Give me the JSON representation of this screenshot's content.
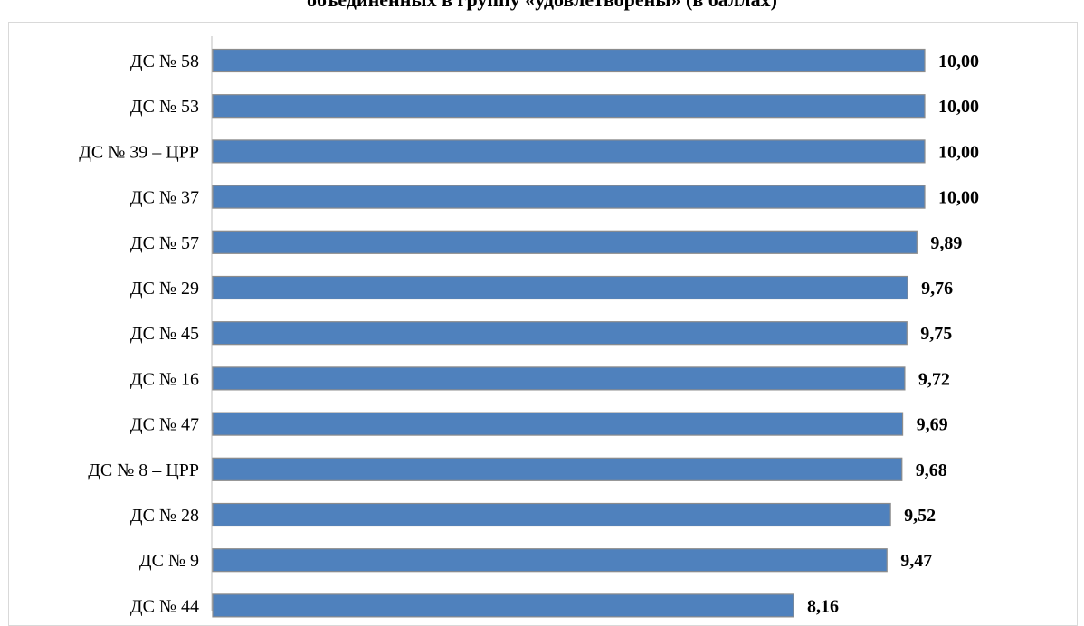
{
  "chart_data": {
    "type": "bar",
    "orientation": "horizontal",
    "title": "объединенных в группу «удовлетворены» (в баллах)",
    "categories": [
      "ДС № 58",
      "ДС № 53",
      "ДС № 39 – ЦРР",
      "ДС № 37",
      "ДС № 57",
      "ДС № 29",
      "ДС № 45",
      "ДС № 16",
      "ДС № 47",
      "ДС № 8 – ЦРР",
      "ДС № 28",
      "ДС № 9",
      "ДС № 44"
    ],
    "values": [
      10.0,
      10.0,
      10.0,
      10.0,
      9.89,
      9.76,
      9.75,
      9.72,
      9.69,
      9.68,
      9.52,
      9.47,
      8.16
    ],
    "value_labels": [
      "10,00",
      "10,00",
      "10,00",
      "10,00",
      "9,89",
      "9,76",
      "9,75",
      "9,72",
      "9,69",
      "9,68",
      "9,52",
      "9,47",
      "8,16"
    ],
    "xlim": [
      0,
      10
    ],
    "grid": false,
    "colors": {
      "bar": "#4f81bd",
      "bar_edge": "#8c8c8c",
      "axis": "#bfbfbf",
      "frame": "#d9d9d9"
    }
  }
}
